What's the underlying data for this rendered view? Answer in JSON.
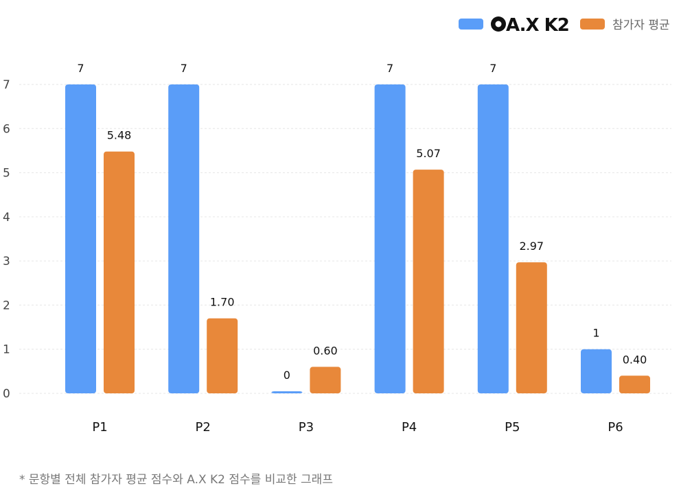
{
  "chart_data": {
    "type": "bar",
    "categories": [
      "P1",
      "P2",
      "P3",
      "P4",
      "P5",
      "P6"
    ],
    "series": [
      {
        "name": "A.X K2",
        "color": "#5A9DF8",
        "values": [
          7,
          7,
          0,
          7,
          7,
          1
        ],
        "labels": [
          "7",
          "7",
          "0",
          "7",
          "7",
          "1"
        ]
      },
      {
        "name": "참가자 평균",
        "color": "#E8883A",
        "values": [
          5.48,
          1.7,
          0.6,
          5.07,
          2.97,
          0.4
        ],
        "labels": [
          "5.48",
          "1.70",
          "0.60",
          "5.07",
          "2.97",
          "0.40"
        ]
      }
    ],
    "yticks": [
      0,
      1,
      2,
      3,
      4,
      5,
      6,
      7
    ],
    "ylim": [
      0,
      7
    ],
    "grid": true,
    "legend_position": "top-right"
  },
  "legend": {
    "series1_label": "A.X K2",
    "series2_label": "참가자 평균"
  },
  "footnote": "* 문항별 전체 참가자 평균 점수와 A.X K2 점수를 비교한 그래프"
}
